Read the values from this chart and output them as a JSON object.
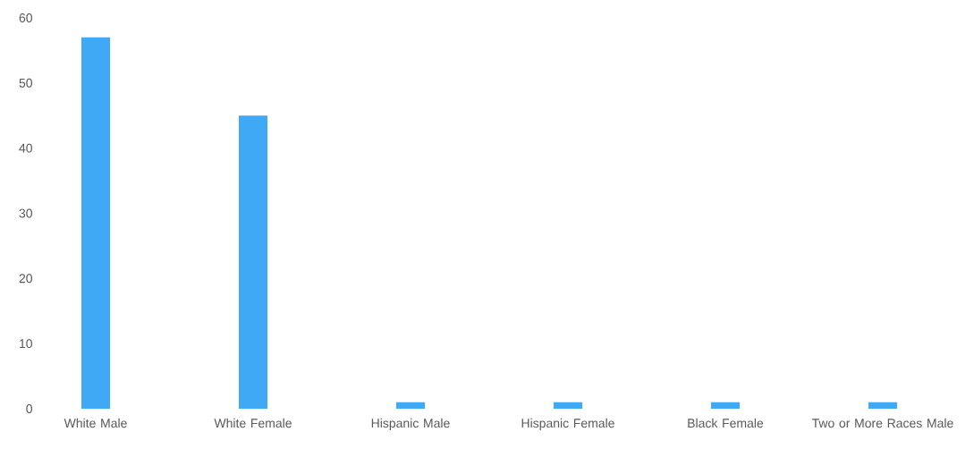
{
  "chart_data": {
    "type": "bar",
    "categories": [
      "White Male",
      "White Female",
      "Hispanic Male",
      "Hispanic Female",
      "Black Female",
      "Two or More Races Male"
    ],
    "values": [
      57,
      45,
      1,
      1,
      1,
      1
    ],
    "color": "#3fa9f5",
    "ylim": [
      0,
      60
    ],
    "yticks": [
      0,
      10,
      20,
      30,
      40,
      50,
      60
    ]
  }
}
